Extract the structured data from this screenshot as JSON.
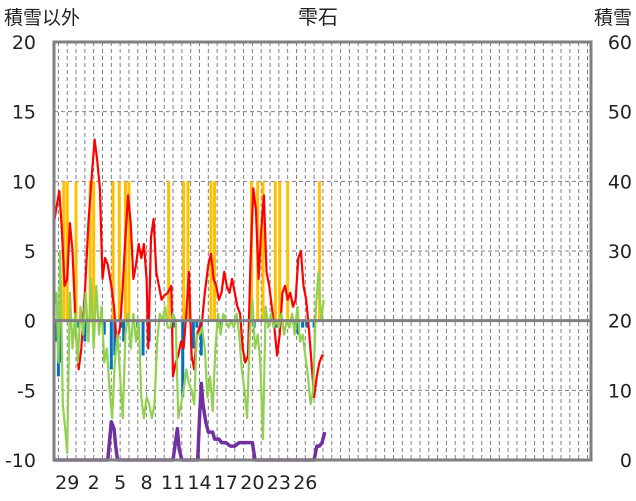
{
  "chart_data": {
    "type": "line",
    "title": "雫石",
    "y_left_label": "積雪以外",
    "y_right_label": "積雪",
    "y_left_range": [
      -10,
      20
    ],
    "y_right_range": [
      0,
      60
    ],
    "y_left_ticks": [
      "20",
      "15",
      "10",
      "5",
      "0",
      "-5",
      "-10"
    ],
    "y_right_ticks": [
      "60",
      "50",
      "40",
      "30",
      "20",
      "10",
      "0"
    ],
    "x_range": [
      27.5,
      88.4
    ],
    "x_tick_labels": [
      {
        "x": 29,
        "label": "29"
      },
      {
        "x": 32,
        "label": "2"
      },
      {
        "x": 35,
        "label": "5"
      },
      {
        "x": 38,
        "label": "8"
      },
      {
        "x": 41,
        "label": "11"
      },
      {
        "x": 44,
        "label": "14"
      },
      {
        "x": 47,
        "label": "17"
      },
      {
        "x": 50,
        "label": "20"
      },
      {
        "x": 53,
        "label": "23"
      },
      {
        "x": 56,
        "label": "26"
      }
    ],
    "colors": {
      "temperature": "#ff0000",
      "wind": "#92d050",
      "sunshine": "#ffc000",
      "precipitation": "#0070c0",
      "snow": "#7030a0",
      "frame": "#7f7f7f",
      "zero_line": "#7f7f7f",
      "grid": "#7f7f7f"
    },
    "series": [
      {
        "key": "temperature",
        "axis": "left",
        "style": "line",
        "points": [
          [
            27.5,
            7.0
          ],
          [
            27.8,
            8.2
          ],
          [
            28.1,
            9.3
          ],
          [
            28.4,
            6.5
          ],
          [
            28.7,
            2.5
          ],
          [
            29.0,
            3.0
          ],
          [
            29.3,
            7.0
          ],
          [
            29.6,
            5.0
          ],
          [
            30.0,
            -1.0
          ],
          [
            30.3,
            -3.5
          ],
          [
            30.6,
            -2.0
          ],
          [
            31.0,
            2.0
          ],
          [
            31.4,
            7.0
          ],
          [
            31.8,
            10.5
          ],
          [
            32.1,
            13.0
          ],
          [
            32.4,
            11.5
          ],
          [
            32.7,
            9.5
          ],
          [
            33.0,
            3.0
          ],
          [
            33.3,
            4.5
          ],
          [
            33.6,
            4.0
          ],
          [
            34.0,
            2.5
          ],
          [
            34.3,
            1.0
          ],
          [
            34.6,
            -1.5
          ],
          [
            35.0,
            -0.5
          ],
          [
            35.3,
            2.5
          ],
          [
            35.6,
            6.0
          ],
          [
            35.9,
            9.0
          ],
          [
            36.2,
            7.0
          ],
          [
            36.5,
            3.0
          ],
          [
            36.8,
            4.0
          ],
          [
            37.1,
            5.5
          ],
          [
            37.4,
            4.5
          ],
          [
            37.7,
            5.5
          ],
          [
            38.0,
            3.0
          ],
          [
            38.2,
            -2.0
          ],
          [
            38.5,
            6.0
          ],
          [
            38.8,
            7.3
          ],
          [
            39.1,
            3.5
          ],
          [
            39.4,
            2.5
          ],
          [
            39.7,
            1.5
          ],
          [
            40.0,
            1.8
          ],
          [
            40.4,
            2.0
          ],
          [
            40.8,
            2.5
          ],
          [
            41.0,
            -4.0
          ],
          [
            41.3,
            -3.0
          ],
          [
            41.6,
            -2.5
          ],
          [
            41.9,
            -1.5
          ],
          [
            42.2,
            -2.0
          ],
          [
            42.5,
            0.5
          ],
          [
            42.8,
            3.5
          ],
          [
            43.1,
            -2.5
          ],
          [
            43.4,
            -3.5
          ],
          [
            43.7,
            -1.0
          ],
          [
            44.0,
            -0.5
          ],
          [
            44.3,
            0.0
          ],
          [
            44.6,
            2.0
          ],
          [
            45.0,
            4.0
          ],
          [
            45.3,
            4.8
          ],
          [
            45.6,
            3.0
          ],
          [
            45.9,
            2.5
          ],
          [
            46.2,
            1.5
          ],
          [
            46.5,
            2.0
          ],
          [
            46.8,
            3.5
          ],
          [
            47.1,
            2.5
          ],
          [
            47.4,
            2.0
          ],
          [
            47.7,
            3.0
          ],
          [
            48.0,
            2.0
          ],
          [
            48.3,
            1.0
          ],
          [
            48.6,
            0.5
          ],
          [
            48.9,
            -2.0
          ],
          [
            49.2,
            -3.0
          ],
          [
            49.5,
            -2.5
          ],
          [
            49.8,
            4.5
          ],
          [
            50.1,
            9.5
          ],
          [
            50.4,
            8.0
          ],
          [
            50.7,
            3.0
          ],
          [
            51.0,
            6.5
          ],
          [
            51.3,
            9.0
          ],
          [
            51.6,
            3.5
          ],
          [
            51.9,
            2.5
          ],
          [
            52.2,
            1.0
          ],
          [
            52.5,
            -0.5
          ],
          [
            52.8,
            -2.5
          ],
          [
            53.1,
            -1.0
          ],
          [
            53.4,
            2.0
          ],
          [
            53.7,
            2.5
          ],
          [
            54.0,
            1.5
          ],
          [
            54.3,
            2.0
          ],
          [
            54.6,
            1.0
          ],
          [
            54.9,
            1.5
          ],
          [
            55.2,
            4.5
          ],
          [
            55.5,
            5.0
          ],
          [
            55.8,
            2.5
          ],
          [
            56.1,
            1.5
          ],
          [
            56.4,
            -0.5
          ],
          [
            56.7,
            -3.0
          ],
          [
            57.0,
            -5.5
          ],
          [
            57.3,
            -4.0
          ],
          [
            57.6,
            -3.0
          ],
          [
            57.9,
            -2.5
          ],
          [
            58.1,
            -2.5
          ]
        ]
      },
      {
        "key": "wind",
        "axis": "left",
        "style": "line",
        "points": [
          [
            27.5,
            1.0
          ],
          [
            27.8,
            2.0
          ],
          [
            28.0,
            -3.0
          ],
          [
            28.2,
            5.0
          ],
          [
            28.5,
            -6.0
          ],
          [
            28.8,
            -8.0
          ],
          [
            29.0,
            -9.5
          ],
          [
            29.3,
            2.0
          ],
          [
            29.6,
            -2.0
          ],
          [
            29.9,
            0.5
          ],
          [
            30.2,
            -3.0
          ],
          [
            30.5,
            1.0
          ],
          [
            30.8,
            -1.0
          ],
          [
            31.1,
            2.0
          ],
          [
            31.4,
            -1.5
          ],
          [
            31.7,
            3.0
          ],
          [
            32.0,
            -2.0
          ],
          [
            32.3,
            2.5
          ],
          [
            32.6,
            -1.0
          ],
          [
            32.9,
            1.0
          ],
          [
            33.2,
            -3.0
          ],
          [
            33.5,
            -2.0
          ],
          [
            33.8,
            -5.0
          ],
          [
            34.1,
            -7.0
          ],
          [
            34.4,
            -3.0
          ],
          [
            34.7,
            -1.0
          ],
          [
            35.0,
            -4.0
          ],
          [
            35.3,
            -7.0
          ],
          [
            35.6,
            -1.0
          ],
          [
            35.9,
            0.5
          ],
          [
            36.2,
            -2.0
          ],
          [
            36.5,
            0.5
          ],
          [
            36.8,
            -1.5
          ],
          [
            37.1,
            0.0
          ],
          [
            37.4,
            -5.5
          ],
          [
            37.7,
            -7.0
          ],
          [
            38.0,
            -5.5
          ],
          [
            38.3,
            -6.0
          ],
          [
            38.6,
            -7.0
          ],
          [
            38.9,
            -6.0
          ],
          [
            39.2,
            -1.5
          ],
          [
            39.5,
            0.5
          ],
          [
            39.8,
            0.0
          ],
          [
            40.1,
            1.0
          ],
          [
            40.4,
            -0.5
          ],
          [
            40.7,
            -0.5
          ],
          [
            41.0,
            0.5
          ],
          [
            41.3,
            0.0
          ],
          [
            41.6,
            -7.0
          ],
          [
            41.9,
            -6.0
          ],
          [
            42.2,
            -5.0
          ],
          [
            42.5,
            -3.5
          ],
          [
            42.8,
            -4.5
          ],
          [
            43.1,
            -5.0
          ],
          [
            43.4,
            -6.0
          ],
          [
            43.7,
            -1.0
          ],
          [
            44.0,
            -1.0
          ],
          [
            44.3,
            -0.5
          ],
          [
            44.6,
            -2.0
          ],
          [
            44.9,
            -5.5
          ],
          [
            45.2,
            -4.0
          ],
          [
            45.5,
            -6.5
          ],
          [
            45.8,
            -2.0
          ],
          [
            46.1,
            0.5
          ],
          [
            46.4,
            -1.0
          ],
          [
            46.7,
            0.5
          ],
          [
            47.0,
            0.0
          ],
          [
            47.3,
            -0.5
          ],
          [
            47.6,
            0.0
          ],
          [
            47.9,
            -0.5
          ],
          [
            48.2,
            0.5
          ],
          [
            48.5,
            -1.0
          ],
          [
            48.8,
            -3.5
          ],
          [
            49.1,
            -5.0
          ],
          [
            49.4,
            -7.0
          ],
          [
            49.7,
            -1.0
          ],
          [
            50.0,
            1.5
          ],
          [
            50.3,
            -2.0
          ],
          [
            50.6,
            -1.0
          ],
          [
            50.9,
            -3.0
          ],
          [
            51.2,
            -8.5
          ],
          [
            51.5,
            1.0
          ],
          [
            51.8,
            -0.5
          ],
          [
            52.1,
            0.5
          ],
          [
            52.4,
            -0.5
          ],
          [
            52.7,
            0.0
          ],
          [
            53.0,
            -0.5
          ],
          [
            53.3,
            0.5
          ],
          [
            53.6,
            -1.0
          ],
          [
            53.9,
            0.0
          ],
          [
            54.2,
            -0.5
          ],
          [
            54.5,
            0.5
          ],
          [
            54.8,
            -1.0
          ],
          [
            55.1,
            1.0
          ],
          [
            55.4,
            -1.5
          ],
          [
            55.7,
            -1.0
          ],
          [
            56.0,
            -2.5
          ],
          [
            56.3,
            -4.0
          ],
          [
            56.6,
            -6.0
          ],
          [
            56.9,
            -5.0
          ],
          [
            57.2,
            1.0
          ],
          [
            57.5,
            3.5
          ],
          [
            57.8,
            0.0
          ],
          [
            58.1,
            1.5
          ]
        ]
      },
      {
        "key": "sunshine",
        "axis": "left",
        "style": "bars_top",
        "bars": [
          [
            28.6,
            10
          ],
          [
            29.0,
            10
          ],
          [
            30.0,
            10
          ],
          [
            31.6,
            10
          ],
          [
            32.0,
            10
          ],
          [
            34.2,
            10
          ],
          [
            34.9,
            10
          ],
          [
            35.6,
            10
          ],
          [
            36.0,
            10
          ],
          [
            40.5,
            10
          ],
          [
            42.2,
            10
          ],
          [
            42.7,
            10
          ],
          [
            45.3,
            10
          ],
          [
            45.7,
            10
          ],
          [
            49.9,
            10
          ],
          [
            50.6,
            10
          ],
          [
            51.2,
            10
          ],
          [
            52.6,
            10
          ],
          [
            53.1,
            10
          ],
          [
            54.0,
            10
          ],
          [
            57.6,
            10
          ]
        ]
      },
      {
        "key": "precipitation",
        "axis": "left",
        "style": "bars_bottom",
        "bars": [
          [
            27.7,
            -1.5
          ],
          [
            28.0,
            -4.0
          ],
          [
            28.3,
            -3.0
          ],
          [
            30.3,
            -0.5
          ],
          [
            31.0,
            -1.5
          ],
          [
            33.2,
            -1.0
          ],
          [
            34.0,
            -3.5
          ],
          [
            34.4,
            -2.5
          ],
          [
            35.1,
            -0.5
          ],
          [
            35.4,
            -1.5
          ],
          [
            37.0,
            -0.5
          ],
          [
            37.6,
            -2.5
          ],
          [
            38.3,
            -1.5
          ],
          [
            41.2,
            -0.5
          ],
          [
            42.1,
            -5.5
          ],
          [
            43.3,
            -2.0
          ],
          [
            43.7,
            -0.5
          ],
          [
            44.2,
            -2.5
          ],
          [
            46.3,
            -0.5
          ],
          [
            50.2,
            -0.5
          ],
          [
            52.7,
            -0.5
          ],
          [
            54.9,
            -0.5
          ],
          [
            55.2,
            -1.0
          ],
          [
            55.7,
            -0.5
          ],
          [
            56.2,
            -0.5
          ],
          [
            57.0,
            -0.5
          ]
        ]
      },
      {
        "key": "snow",
        "axis": "right",
        "style": "line",
        "points": [
          [
            27.5,
            0
          ],
          [
            29.0,
            0
          ],
          [
            32.0,
            0
          ],
          [
            33.6,
            0
          ],
          [
            34.0,
            5.5
          ],
          [
            34.3,
            4.5
          ],
          [
            34.5,
            2.0
          ],
          [
            34.7,
            0
          ],
          [
            38.0,
            0
          ],
          [
            40.0,
            0
          ],
          [
            41.0,
            0
          ],
          [
            41.5,
            4.5
          ],
          [
            41.7,
            1.5
          ],
          [
            42.0,
            0
          ],
          [
            43.8,
            0
          ],
          [
            44.0,
            6.0
          ],
          [
            44.2,
            11.0
          ],
          [
            44.4,
            8.0
          ],
          [
            44.7,
            5.5
          ],
          [
            45.0,
            4.0
          ],
          [
            45.5,
            4.0
          ],
          [
            45.7,
            3.0
          ],
          [
            46.2,
            3.0
          ],
          [
            46.5,
            2.5
          ],
          [
            47.0,
            2.5
          ],
          [
            47.5,
            2.0
          ],
          [
            48.0,
            2.0
          ],
          [
            48.5,
            2.5
          ],
          [
            49.5,
            2.5
          ],
          [
            50.0,
            2.5
          ],
          [
            50.3,
            0
          ],
          [
            53.0,
            0
          ],
          [
            55.0,
            0
          ],
          [
            56.0,
            0
          ],
          [
            57.0,
            0
          ],
          [
            57.3,
            2.0
          ],
          [
            57.6,
            2.0
          ],
          [
            57.9,
            2.5
          ],
          [
            58.2,
            4.0
          ]
        ]
      }
    ],
    "grid": true,
    "legend": "none"
  }
}
